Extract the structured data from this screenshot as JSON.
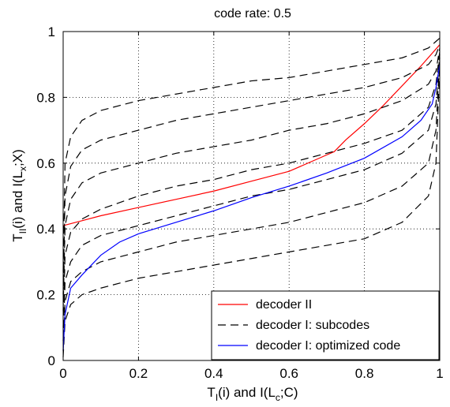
{
  "chart_data": {
    "type": "line",
    "title": "code rate: 0.5",
    "xlabel": {
      "pre": "T",
      "sub": "I",
      "mid": "(i) and I(L",
      "sub2": "c",
      "post": ";C)"
    },
    "ylabel": {
      "pre": "T",
      "sub": "II",
      "mid": "(i) and I(L",
      "sub2": "x",
      "post": ";X)"
    },
    "xlim": [
      0,
      1
    ],
    "ylim": [
      0,
      1
    ],
    "xticks": [
      "0",
      "0.2",
      "0.4",
      "0.6",
      "0.8",
      "1"
    ],
    "yticks": [
      "0",
      "0.2",
      "0.4",
      "0.6",
      "0.8",
      "1"
    ],
    "grid": true,
    "legend_position": "bottom-right",
    "series": [
      {
        "name": "decoder II",
        "color": "#ff0000",
        "style": "solid",
        "points": [
          [
            0,
            0.41
          ],
          [
            0.05,
            0.425
          ],
          [
            0.1,
            0.44
          ],
          [
            0.2,
            0.465
          ],
          [
            0.3,
            0.49
          ],
          [
            0.4,
            0.515
          ],
          [
            0.5,
            0.545
          ],
          [
            0.6,
            0.575
          ],
          [
            0.7,
            0.625
          ],
          [
            0.72,
            0.635
          ],
          [
            0.75,
            0.67
          ],
          [
            0.8,
            0.72
          ],
          [
            0.85,
            0.775
          ],
          [
            0.9,
            0.835
          ],
          [
            0.95,
            0.895
          ],
          [
            1,
            0.96
          ]
        ]
      },
      {
        "name": "decoder I: subcodes",
        "color": "#000000",
        "style": "dashed",
        "curves": [
          [
            [
              0,
              0.01
            ],
            [
              0.005,
              0.12
            ],
            [
              0.02,
              0.17
            ],
            [
              0.05,
              0.2
            ],
            [
              0.1,
              0.22
            ],
            [
              0.2,
              0.25
            ],
            [
              0.3,
              0.27
            ],
            [
              0.4,
              0.29
            ],
            [
              0.5,
              0.31
            ],
            [
              0.6,
              0.33
            ],
            [
              0.7,
              0.35
            ],
            [
              0.8,
              0.37
            ],
            [
              0.9,
              0.42
            ],
            [
              0.97,
              0.5
            ],
            [
              0.99,
              0.6
            ],
            [
              1,
              0.9
            ]
          ],
          [
            [
              0,
              0.03
            ],
            [
              0.005,
              0.18
            ],
            [
              0.02,
              0.24
            ],
            [
              0.05,
              0.27
            ],
            [
              0.1,
              0.3
            ],
            [
              0.2,
              0.33
            ],
            [
              0.3,
              0.36
            ],
            [
              0.4,
              0.38
            ],
            [
              0.5,
              0.4
            ],
            [
              0.6,
              0.42
            ],
            [
              0.7,
              0.45
            ],
            [
              0.8,
              0.48
            ],
            [
              0.9,
              0.53
            ],
            [
              0.97,
              0.6
            ],
            [
              0.99,
              0.7
            ],
            [
              1,
              0.92
            ]
          ],
          [
            [
              0,
              0.06
            ],
            [
              0.005,
              0.24
            ],
            [
              0.02,
              0.3
            ],
            [
              0.05,
              0.35
            ],
            [
              0.1,
              0.38
            ],
            [
              0.2,
              0.41
            ],
            [
              0.3,
              0.44
            ],
            [
              0.4,
              0.47
            ],
            [
              0.5,
              0.5
            ],
            [
              0.6,
              0.52
            ],
            [
              0.7,
              0.55
            ],
            [
              0.8,
              0.58
            ],
            [
              0.9,
              0.63
            ],
            [
              0.97,
              0.7
            ],
            [
              0.99,
              0.78
            ],
            [
              1,
              0.93
            ]
          ],
          [
            [
              0,
              0.1
            ],
            [
              0.005,
              0.32
            ],
            [
              0.02,
              0.39
            ],
            [
              0.05,
              0.43
            ],
            [
              0.1,
              0.46
            ],
            [
              0.2,
              0.5
            ],
            [
              0.3,
              0.53
            ],
            [
              0.4,
              0.55
            ],
            [
              0.5,
              0.58
            ],
            [
              0.6,
              0.6
            ],
            [
              0.7,
              0.63
            ],
            [
              0.8,
              0.66
            ],
            [
              0.9,
              0.7
            ],
            [
              0.97,
              0.77
            ],
            [
              0.99,
              0.84
            ],
            [
              1,
              0.94
            ]
          ],
          [
            [
              0,
              0.15
            ],
            [
              0.005,
              0.41
            ],
            [
              0.02,
              0.49
            ],
            [
              0.05,
              0.54
            ],
            [
              0.1,
              0.57
            ],
            [
              0.2,
              0.6
            ],
            [
              0.3,
              0.63
            ],
            [
              0.4,
              0.65
            ],
            [
              0.5,
              0.67
            ],
            [
              0.6,
              0.7
            ],
            [
              0.7,
              0.72
            ],
            [
              0.8,
              0.75
            ],
            [
              0.9,
              0.79
            ],
            [
              0.97,
              0.84
            ],
            [
              0.99,
              0.88
            ],
            [
              1,
              0.95
            ]
          ],
          [
            [
              0,
              0.2
            ],
            [
              0.005,
              0.5
            ],
            [
              0.02,
              0.59
            ],
            [
              0.05,
              0.64
            ],
            [
              0.1,
              0.67
            ],
            [
              0.2,
              0.7
            ],
            [
              0.3,
              0.73
            ],
            [
              0.4,
              0.75
            ],
            [
              0.5,
              0.77
            ],
            [
              0.6,
              0.79
            ],
            [
              0.7,
              0.81
            ],
            [
              0.8,
              0.83
            ],
            [
              0.9,
              0.86
            ],
            [
              0.97,
              0.9
            ],
            [
              0.99,
              0.93
            ],
            [
              1,
              0.96
            ]
          ],
          [
            [
              0,
              0.27
            ],
            [
              0.005,
              0.6
            ],
            [
              0.02,
              0.68
            ],
            [
              0.05,
              0.73
            ],
            [
              0.1,
              0.76
            ],
            [
              0.2,
              0.79
            ],
            [
              0.3,
              0.81
            ],
            [
              0.4,
              0.83
            ],
            [
              0.5,
              0.85
            ],
            [
              0.6,
              0.86
            ],
            [
              0.7,
              0.88
            ],
            [
              0.8,
              0.9
            ],
            [
              0.9,
              0.92
            ],
            [
              0.97,
              0.95
            ],
            [
              0.99,
              0.97
            ],
            [
              1,
              0.98
            ]
          ]
        ]
      },
      {
        "name": "decoder I: optimized code",
        "color": "#0000ff",
        "style": "solid",
        "points": [
          [
            0,
            0.03
          ],
          [
            0.005,
            0.14
          ],
          [
            0.02,
            0.22
          ],
          [
            0.05,
            0.26
          ],
          [
            0.1,
            0.32
          ],
          [
            0.15,
            0.36
          ],
          [
            0.2,
            0.385
          ],
          [
            0.3,
            0.42
          ],
          [
            0.4,
            0.455
          ],
          [
            0.5,
            0.495
          ],
          [
            0.6,
            0.53
          ],
          [
            0.7,
            0.57
          ],
          [
            0.8,
            0.615
          ],
          [
            0.9,
            0.68
          ],
          [
            0.95,
            0.73
          ],
          [
            0.98,
            0.78
          ],
          [
            0.99,
            0.83
          ],
          [
            1,
            0.9
          ]
        ]
      }
    ]
  }
}
